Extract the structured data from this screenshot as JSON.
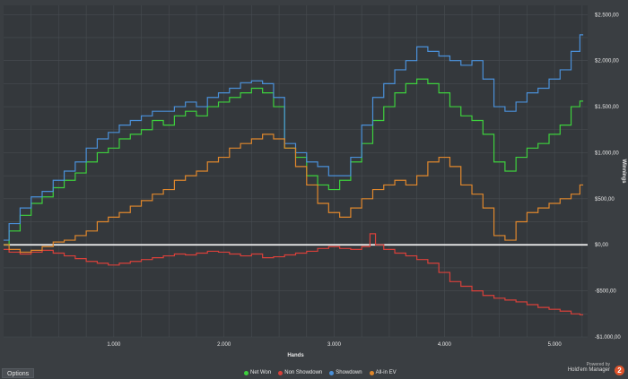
{
  "options_label": "Options",
  "powered_by": "Powered by",
  "brand": "Hold'em Manager",
  "brand_badge": "2",
  "chart_data": {
    "type": "line",
    "xlabel": "Hands",
    "ylabel": "Winnings",
    "xlim": [
      0,
      5300
    ],
    "ylim": [
      -1000,
      2600
    ],
    "x_ticks": [
      {
        "v": 1000,
        "label": "1.000"
      },
      {
        "v": 2000,
        "label": "2.000"
      },
      {
        "v": 3000,
        "label": "3.000"
      },
      {
        "v": 4000,
        "label": "4.000"
      },
      {
        "v": 5000,
        "label": "5.000"
      }
    ],
    "y_ticks": [
      {
        "v": 2500,
        "label": "$2.500,00"
      },
      {
        "v": 2000,
        "label": "$2.000,00"
      },
      {
        "v": 1500,
        "label": "$1.500,00"
      },
      {
        "v": 1000,
        "label": "$1.000,00"
      },
      {
        "v": 500,
        "label": "$500,00"
      },
      {
        "v": 0,
        "label": "$0,00"
      },
      {
        "v": -500,
        "label": "-$500,00"
      },
      {
        "v": -1000,
        "label": "-$1.000,00"
      }
    ],
    "grid": true,
    "legend_position": "bottom-center",
    "series": [
      {
        "name": "Net Won",
        "color": "#3dd13d",
        "x": [
          0,
          100,
          200,
          300,
          400,
          500,
          600,
          700,
          800,
          900,
          1000,
          1100,
          1200,
          1300,
          1400,
          1500,
          1600,
          1700,
          1800,
          1900,
          2000,
          2100,
          2200,
          2300,
          2400,
          2500,
          2600,
          2700,
          2800,
          2900,
          3000,
          3100,
          3200,
          3300,
          3400,
          3500,
          3600,
          3700,
          3800,
          3900,
          4000,
          4100,
          4200,
          4300,
          4400,
          4500,
          4600,
          4700,
          4800,
          4900,
          5000,
          5100,
          5200,
          5260
        ],
        "y": [
          0,
          150,
          320,
          450,
          520,
          620,
          700,
          780,
          900,
          1000,
          1050,
          1150,
          1200,
          1250,
          1350,
          1300,
          1400,
          1450,
          1400,
          1500,
          1550,
          1600,
          1650,
          1700,
          1650,
          1500,
          1050,
          950,
          750,
          650,
          600,
          700,
          900,
          1100,
          1350,
          1500,
          1650,
          1750,
          1800,
          1750,
          1650,
          1500,
          1400,
          1350,
          1200,
          900,
          800,
          950,
          1050,
          1100,
          1200,
          1300,
          1500,
          1560
        ]
      },
      {
        "name": "Non Showdown",
        "color": "#d9403a",
        "x": [
          0,
          100,
          200,
          300,
          400,
          500,
          600,
          700,
          800,
          900,
          1000,
          1100,
          1200,
          1300,
          1400,
          1500,
          1600,
          1700,
          1800,
          1900,
          2000,
          2100,
          2200,
          2300,
          2400,
          2500,
          2600,
          2700,
          2800,
          2900,
          3000,
          3100,
          3200,
          3300,
          3350,
          3400,
          3500,
          3600,
          3700,
          3800,
          3900,
          4000,
          4100,
          4200,
          4300,
          4400,
          4500,
          4600,
          4700,
          4800,
          4900,
          5000,
          5100,
          5200,
          5260
        ],
        "y": [
          -50,
          -80,
          -100,
          -80,
          -60,
          -90,
          -120,
          -150,
          -180,
          -200,
          -220,
          -200,
          -180,
          -160,
          -140,
          -120,
          -100,
          -110,
          -90,
          -70,
          -80,
          -100,
          -120,
          -100,
          -140,
          -130,
          -110,
          -90,
          -70,
          -40,
          -20,
          -40,
          -50,
          -20,
          120,
          0,
          -50,
          -90,
          -120,
          -160,
          -200,
          -300,
          -400,
          -450,
          -500,
          -550,
          -580,
          -600,
          -620,
          -650,
          -680,
          -700,
          -720,
          -750,
          -760
        ]
      },
      {
        "name": "Showdown",
        "color": "#4a90d9",
        "x": [
          0,
          100,
          200,
          300,
          400,
          500,
          600,
          700,
          800,
          900,
          1000,
          1100,
          1200,
          1300,
          1400,
          1500,
          1600,
          1700,
          1800,
          1900,
          2000,
          2100,
          2200,
          2300,
          2400,
          2500,
          2600,
          2700,
          2800,
          2900,
          3000,
          3100,
          3200,
          3300,
          3400,
          3500,
          3600,
          3700,
          3800,
          3900,
          4000,
          4100,
          4200,
          4300,
          4400,
          4500,
          4600,
          4700,
          4800,
          4900,
          5000,
          5100,
          5200,
          5260
        ],
        "y": [
          50,
          230,
          400,
          520,
          580,
          700,
          800,
          900,
          1050,
          1150,
          1220,
          1300,
          1350,
          1400,
          1450,
          1450,
          1500,
          1550,
          1500,
          1600,
          1650,
          1700,
          1760,
          1780,
          1750,
          1600,
          1100,
          1000,
          900,
          850,
          750,
          750,
          950,
          1300,
          1600,
          1750,
          1900,
          2000,
          2150,
          2100,
          2050,
          2000,
          1950,
          2000,
          1800,
          1500,
          1450,
          1550,
          1650,
          1700,
          1800,
          1900,
          2100,
          2280
        ]
      },
      {
        "name": "All-in EV",
        "color": "#e0872c",
        "x": [
          0,
          100,
          200,
          300,
          400,
          500,
          600,
          700,
          800,
          900,
          1000,
          1100,
          1200,
          1300,
          1400,
          1500,
          1600,
          1700,
          1800,
          1900,
          2000,
          2100,
          2200,
          2300,
          2400,
          2500,
          2600,
          2700,
          2800,
          2900,
          3000,
          3100,
          3200,
          3300,
          3400,
          3500,
          3600,
          3700,
          3800,
          3900,
          4000,
          4100,
          4200,
          4300,
          4400,
          4500,
          4600,
          4700,
          4800,
          4900,
          5000,
          5100,
          5200,
          5260
        ],
        "y": [
          0,
          -50,
          -80,
          -60,
          -20,
          30,
          50,
          100,
          150,
          250,
          300,
          350,
          420,
          480,
          550,
          600,
          700,
          750,
          800,
          900,
          950,
          1050,
          1100,
          1150,
          1200,
          1150,
          1050,
          850,
          650,
          450,
          350,
          300,
          400,
          500,
          600,
          650,
          700,
          650,
          750,
          900,
          950,
          850,
          650,
          550,
          400,
          100,
          50,
          250,
          350,
          400,
          450,
          500,
          550,
          650
        ]
      }
    ]
  }
}
